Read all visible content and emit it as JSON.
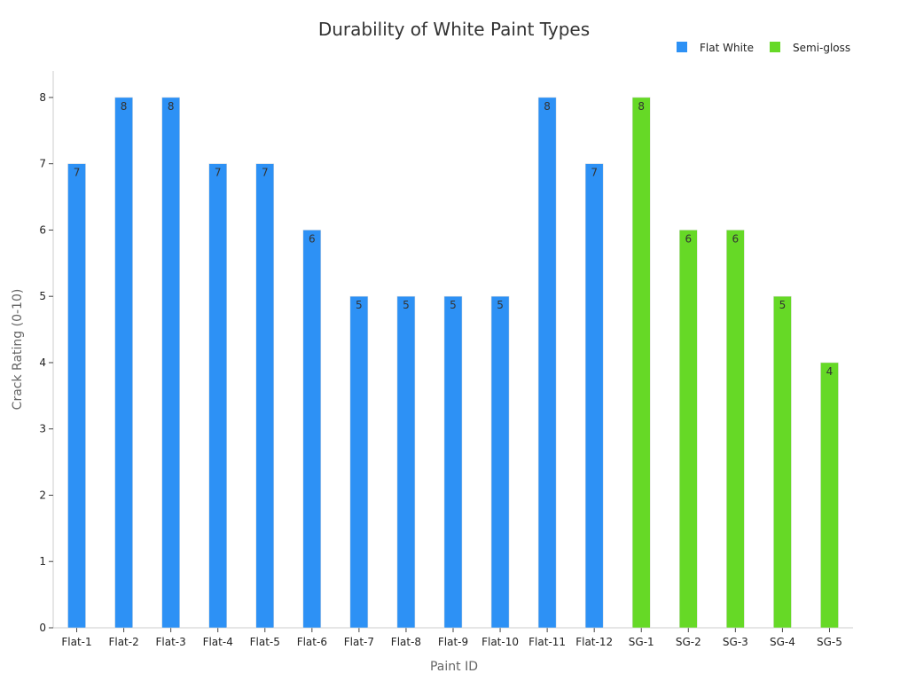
{
  "chart_data": {
    "type": "bar",
    "title": "Durability of White Paint Types",
    "xlabel": "Paint ID",
    "ylabel": "Crack Rating (0-10)",
    "ylim": [
      0,
      8.4
    ],
    "yticks": [
      0,
      1,
      2,
      3,
      4,
      5,
      6,
      7,
      8
    ],
    "grid": false,
    "legend_position": "top-right",
    "categories": [
      "Flat-1",
      "Flat-2",
      "Flat-3",
      "Flat-4",
      "Flat-5",
      "Flat-6",
      "Flat-7",
      "Flat-8",
      "Flat-9",
      "Flat-10",
      "Flat-11",
      "Flat-12",
      "SG-1",
      "SG-2",
      "SG-3",
      "SG-4",
      "SG-5"
    ],
    "series": [
      {
        "name": "Flat White",
        "color": "#2d91f5",
        "values": [
          7,
          8,
          8,
          7,
          7,
          6,
          5,
          5,
          5,
          5,
          8,
          7,
          null,
          null,
          null,
          null,
          null
        ]
      },
      {
        "name": "Semi-gloss",
        "color": "#66d926",
        "values": [
          null,
          null,
          null,
          null,
          null,
          null,
          null,
          null,
          null,
          null,
          null,
          null,
          8,
          6,
          6,
          5,
          4
        ]
      }
    ]
  }
}
